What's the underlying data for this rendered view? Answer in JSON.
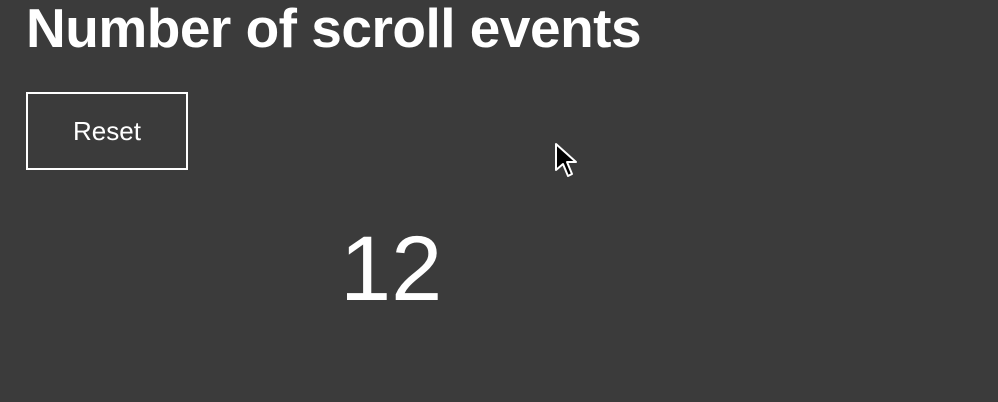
{
  "page": {
    "title": "Number of scroll events"
  },
  "controls": {
    "reset_label": "Reset"
  },
  "counter": {
    "value": "12"
  },
  "colors": {
    "background": "#3b3b3b",
    "text": "#ffffff",
    "button_border": "#ffffff"
  },
  "icons": {
    "cursor": "mouse-pointer-icon"
  }
}
